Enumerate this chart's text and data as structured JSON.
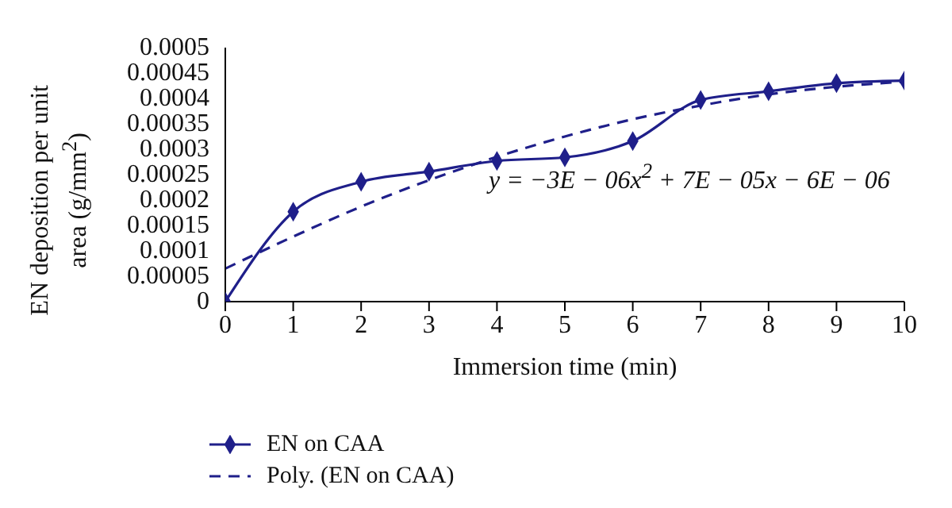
{
  "chart_data": {
    "type": "line",
    "xlabel": "Immersion time (min)",
    "ylabel": "EN deposition per unit area (g/mm$^{2}$)",
    "x": [
      0,
      1,
      2,
      3,
      4,
      5,
      6,
      7,
      8,
      9,
      10
    ],
    "series": [
      {
        "name": "EN on CAA",
        "color": "#1f1f8a",
        "values": [
          0,
          0.000177,
          0.000236,
          0.000256,
          0.000277,
          0.000284,
          0.000316,
          0.000397,
          0.000414,
          0.00043,
          0.000435
        ],
        "marker": "diamond",
        "line_style": "solid"
      },
      {
        "name": "Poly. (EN on CAA)",
        "color": "#1f1f8a",
        "values": [
          6.5e-05,
          0.000128,
          0.000187,
          0.000239,
          0.000285,
          0.000325,
          0.000359,
          0.000386,
          0.000408,
          0.000423,
          0.000433
        ],
        "marker": "none",
        "line_style": "dashed"
      }
    ],
    "xlim": [
      0,
      10
    ],
    "xticks": [
      0,
      1,
      2,
      3,
      4,
      5,
      6,
      7,
      8,
      9,
      10
    ],
    "ylim": [
      0,
      0.0005
    ],
    "yticks": [
      0,
      {
        "value": 5e-05,
        "label": "0.00005"
      },
      0.0001,
      0.00015,
      0.0002,
      0.00025,
      0.0003,
      0.00035,
      0.0004,
      0.00045,
      0.0005
    ],
    "annotations": [
      "y = −3E − 06x$^{2}$ + 7E − 05x − 6E − 06"
    ],
    "grid": false,
    "legend": "bottom left"
  }
}
